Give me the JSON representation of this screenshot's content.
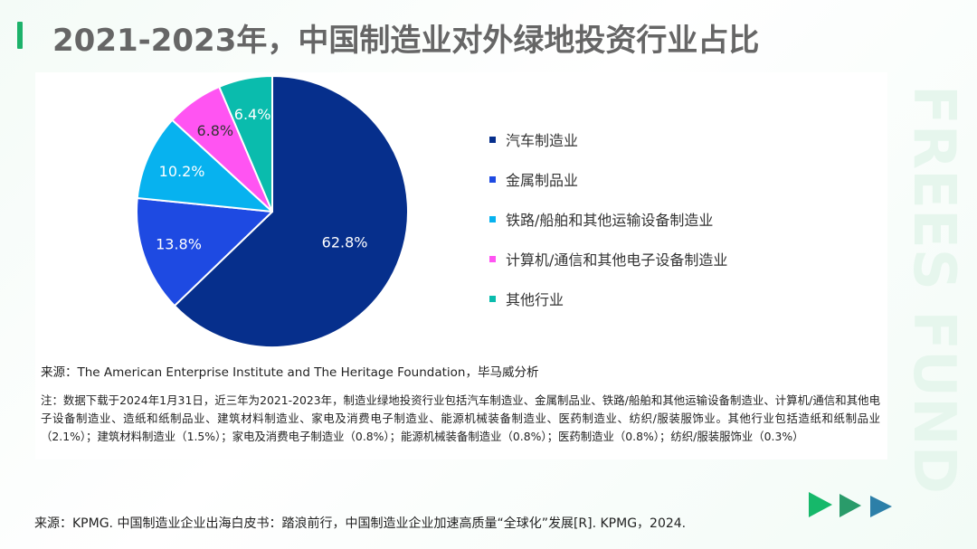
{
  "title": "2021-2023年，中国制造业对外绿地投资行业占比",
  "chart_data": {
    "type": "pie",
    "title": "",
    "series": [
      {
        "label": "汽车制造业",
        "value": 62.8,
        "display": "62.8%",
        "color": "#062f8c",
        "text_color": "#ffffff"
      },
      {
        "label": "金属制品业",
        "value": 13.8,
        "display": "13.8%",
        "color": "#1e4ae2",
        "text_color": "#ffffff"
      },
      {
        "label": "铁路/船舶和其他运输设备制造业",
        "value": 10.2,
        "display": "10.2%",
        "color": "#07b2ef",
        "text_color": "#ffffff"
      },
      {
        "label": "计算机/通信和其他电子设备制造业",
        "value": 6.8,
        "display": "6.8%",
        "color": "#ff54f2",
        "text_color": "#333333"
      },
      {
        "label": "其他行业",
        "value": 6.4,
        "display": "6.4%",
        "color": "#0abcad",
        "text_color": "#ffffff"
      }
    ],
    "legend_position": "right"
  },
  "source_top": "来源：The American Enterprise Institute and The Heritage Foundation，毕马威分析",
  "note": "注：数据下载于2024年1月31日，近三年为2021-2023年，制造业绿地投资行业包括汽车制造业、金属制品业、铁路/船舶和其他运输设备制造业、计算机/通信和其他电子设备制造业、造纸和纸制品业、建筑材料制造业、家电及消费电子制造业、能源机械装备制造业、医药制造业、纺织/服装服饰业。其他行业包括造纸和纸制品业（2.1%）；建筑材料制造业（1.5%）；家电及消费电子制造业（0.8%）；能源机械装备制造业（0.8%）；医药制造业（0.8%）；纺织/服装服饰业（0.3%）",
  "source_bottom": "来源：KPMG. 中国制造业企业出海白皮书：踏浪前行，中国制造业企业加速高质量“全球化”发展[R]. KPMG，2024.",
  "watermark_text": "FREES FUND",
  "colors": {
    "accent": "#1db26b",
    "arrow_1": "#16b86a",
    "arrow_2": "#2a9b6a",
    "arrow_3": "#2c7fa8"
  }
}
